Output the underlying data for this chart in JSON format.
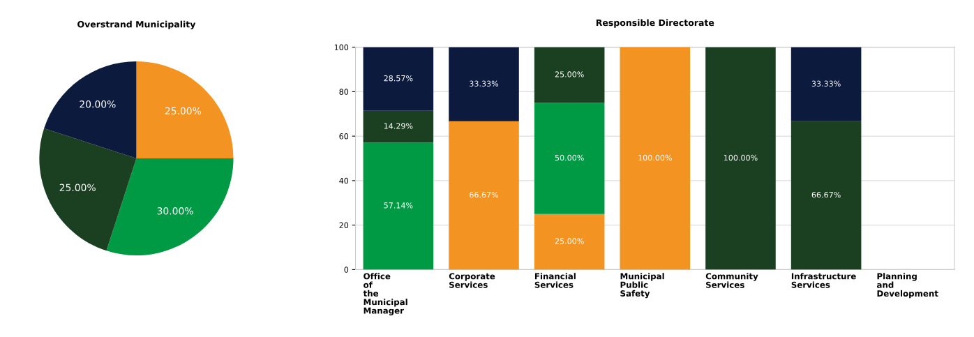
{
  "chart_data": [
    {
      "type": "pie",
      "title": "Overstrand Municipality",
      "categories": [
        null,
        null,
        null,
        null
      ],
      "values": [
        25,
        30,
        25,
        20
      ],
      "colors": [
        "#f39322",
        "#009a44",
        "#1b3f21",
        "#0c1a3e"
      ],
      "value_labels": [
        "25.00%",
        "30.00%",
        "25.00%",
        "20.00%"
      ]
    },
    {
      "type": "bar",
      "title": "Responsible Directorate",
      "stacked": true,
      "categories": [
        "Office\nof\nthe\nMunicipal\nManager",
        "Corporate\nServices",
        "Financial\nServices",
        "Municipal\nPublic\nSafety",
        "Community\nServices",
        "Infrastructure\nServices",
        "Planning\nand\nDevelopment"
      ],
      "series": [
        {
          "color": "#f39322",
          "values": [
            null,
            66.67,
            25,
            100,
            null,
            null,
            null
          ],
          "value_labels": [
            null,
            "66.67%",
            "25.00%",
            "100.00%",
            null,
            null,
            null
          ]
        },
        {
          "color": "#009a44",
          "values": [
            57.14,
            null,
            50,
            null,
            null,
            null,
            null
          ],
          "value_labels": [
            "57.14%",
            null,
            "50.00%",
            null,
            null,
            null,
            null
          ]
        },
        {
          "color": "#1b3f21",
          "values": [
            14.29,
            null,
            25,
            null,
            100,
            66.67,
            null
          ],
          "value_labels": [
            "14.29%",
            null,
            "25.00%",
            null,
            "100.00%",
            "66.67%",
            null
          ]
        },
        {
          "color": "#0c1a3e",
          "values": [
            28.57,
            33.33,
            null,
            null,
            null,
            33.33,
            null
          ],
          "value_labels": [
            "28.57%",
            "33.33%",
            null,
            null,
            null,
            "33.33%",
            null
          ]
        }
      ],
      "ylim": [
        0,
        100
      ],
      "yticks": [
        0,
        20,
        40,
        60,
        80,
        100
      ],
      "grid": "y"
    }
  ]
}
